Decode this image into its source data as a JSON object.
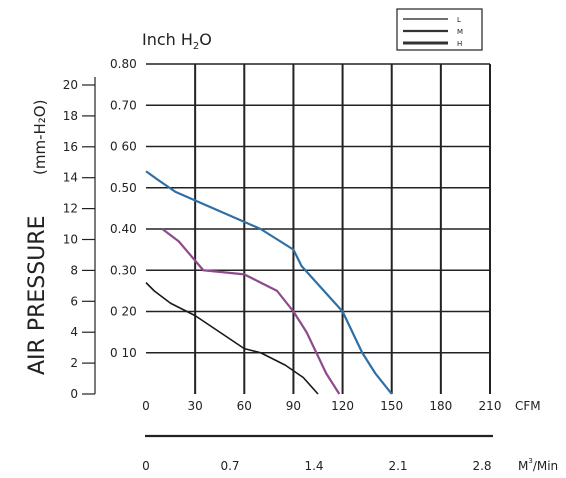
{
  "chart_data": {
    "type": "line",
    "title": "",
    "y_unit_main": "Inch",
    "y_unit_sub": "2",
    "y_unit_tail": "O",
    "y_unit_h": "H",
    "ylabel_main": "AIR PRESSURE",
    "ylabel_alt": "(mm-H₂O)",
    "xlabel_cfm": "CFM",
    "xlabel_m3_base": "M",
    "xlabel_m3_sup": "3",
    "xlabel_m3_tail": "/Min",
    "xlim": [
      0,
      210
    ],
    "ylim": [
      0,
      0.8
    ],
    "grid": true,
    "y_ticks": [
      "0.80",
      "0.70",
      "0 60",
      "0.50",
      "0.40",
      "0.30",
      "0 20",
      "0 10"
    ],
    "y_tick_values": [
      0.8,
      0.7,
      0.6,
      0.5,
      0.4,
      0.3,
      0.2,
      0.1
    ],
    "x_ticks": [
      "0",
      "30",
      "60",
      "90",
      "120",
      "150",
      "180",
      "210"
    ],
    "x_tick_values": [
      0,
      30,
      60,
      90,
      120,
      150,
      180,
      210
    ],
    "m3_ticks": [
      "0",
      "0.7",
      "1.4",
      "2.1",
      "2.8"
    ],
    "m3_tick_values": [
      0,
      0.7,
      1.4,
      2.1,
      2.8
    ],
    "mm_ticks": [
      "20",
      "18",
      "16",
      "14",
      "12",
      "10",
      "8",
      "6",
      "4",
      "2",
      "0"
    ],
    "mm_tick_values": [
      20,
      18,
      16,
      14,
      12,
      10,
      8,
      6,
      4,
      2,
      0
    ],
    "legend": {
      "placement": "top-right",
      "entries": [
        "L",
        "M",
        "H"
      ]
    },
    "series": [
      {
        "name": "L",
        "color": "#1a1a1a",
        "x": [
          0,
          5,
          15,
          30,
          45,
          60,
          70,
          85,
          96,
          105
        ],
        "y": [
          0.27,
          0.25,
          0.22,
          0.19,
          0.15,
          0.11,
          0.1,
          0.07,
          0.04,
          0
        ]
      },
      {
        "name": "M",
        "color": "#8e4a8c",
        "x": [
          10,
          20,
          35,
          60,
          80,
          90,
          98,
          110,
          118
        ],
        "y": [
          0.4,
          0.37,
          0.3,
          0.29,
          0.25,
          0.2,
          0.15,
          0.05,
          0
        ]
      },
      {
        "name": "H",
        "color": "#2f6fa5",
        "x": [
          0,
          7,
          18,
          70,
          90,
          95,
          120,
          132,
          140,
          150
        ],
        "y": [
          0.54,
          0.52,
          0.49,
          0.4,
          0.35,
          0.31,
          0.2,
          0.1,
          0.05,
          0
        ]
      }
    ]
  }
}
